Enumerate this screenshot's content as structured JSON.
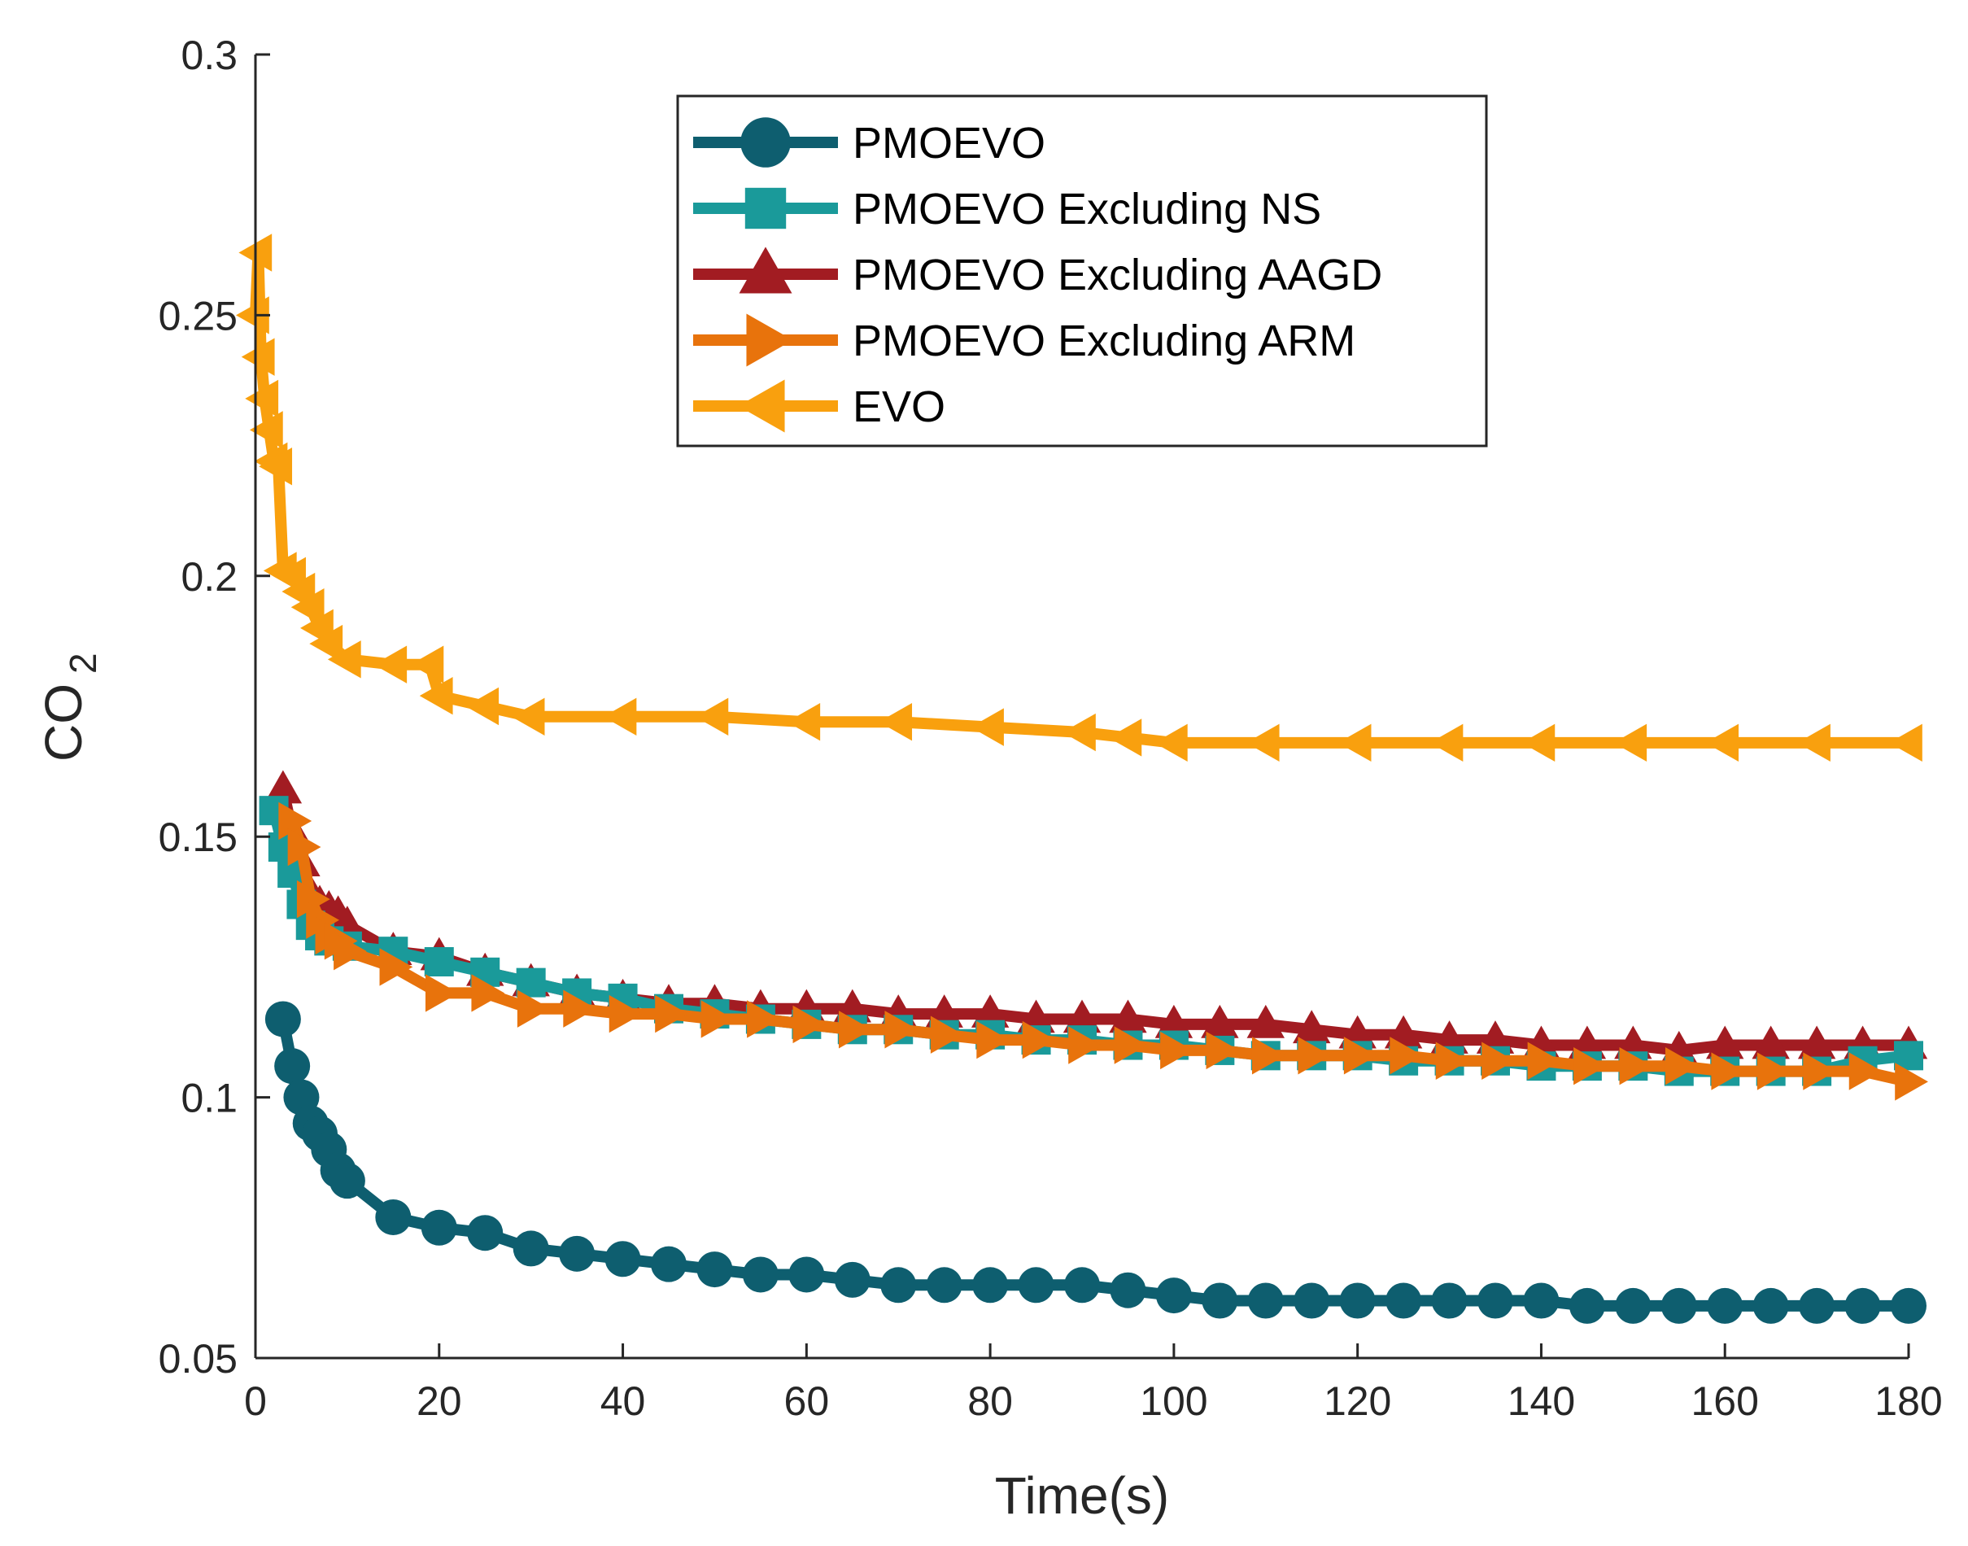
{
  "chart_data": {
    "type": "line",
    "title": "",
    "xlabel": "Time(s)",
    "ylabel": "CO",
    "ylabel_subscript": "2",
    "xlim": [
      0,
      180
    ],
    "ylim": [
      0.05,
      0.3
    ],
    "xticks": [
      0,
      20,
      40,
      60,
      80,
      100,
      120,
      140,
      160,
      180
    ],
    "xtick_labels": [
      "0",
      "20",
      "40",
      "60",
      "80",
      "100",
      "120",
      "140",
      "160",
      "180"
    ],
    "yticks": [
      0.05,
      0.1,
      0.15,
      0.2,
      0.25,
      0.3
    ],
    "ytick_labels": [
      "0.05",
      "0.1",
      "0.15",
      "0.2",
      "0.25",
      "0.3"
    ],
    "grid": false,
    "legend_position": "top-right",
    "series": [
      {
        "name": "PMOEVO",
        "color": "#0E5E6F",
        "marker": "circle",
        "x": [
          3,
          4,
          5,
          6,
          7,
          8,
          9,
          10,
          15,
          20,
          25,
          30,
          35,
          40,
          45,
          50,
          55,
          60,
          65,
          70,
          75,
          80,
          85,
          90,
          95,
          100,
          105,
          110,
          115,
          120,
          125,
          130,
          135,
          140,
          145,
          150,
          155,
          160,
          165,
          170,
          175,
          180
        ],
        "y": [
          0.115,
          0.106,
          0.1,
          0.095,
          0.093,
          0.09,
          0.086,
          0.084,
          0.077,
          0.075,
          0.074,
          0.071,
          0.07,
          0.069,
          0.068,
          0.067,
          0.066,
          0.066,
          0.065,
          0.064,
          0.064,
          0.064,
          0.064,
          0.064,
          0.063,
          0.062,
          0.061,
          0.061,
          0.061,
          0.061,
          0.061,
          0.061,
          0.061,
          0.061,
          0.06,
          0.06,
          0.06,
          0.06,
          0.06,
          0.06,
          0.06,
          0.06
        ]
      },
      {
        "name": "PMOEVO Excluding NS",
        "color": "#1A9A9A",
        "marker": "square",
        "x": [
          2,
          3,
          4,
          5,
          6,
          7,
          8,
          10,
          15,
          20,
          25,
          30,
          35,
          40,
          45,
          50,
          55,
          60,
          65,
          70,
          75,
          80,
          85,
          90,
          95,
          100,
          105,
          110,
          115,
          120,
          125,
          130,
          135,
          140,
          145,
          150,
          155,
          160,
          165,
          170,
          175,
          180
        ],
        "y": [
          0.155,
          0.148,
          0.143,
          0.137,
          0.133,
          0.131,
          0.13,
          0.129,
          0.128,
          0.126,
          0.124,
          0.122,
          0.12,
          0.119,
          0.117,
          0.116,
          0.115,
          0.114,
          0.113,
          0.113,
          0.112,
          0.112,
          0.111,
          0.111,
          0.11,
          0.11,
          0.109,
          0.108,
          0.108,
          0.108,
          0.107,
          0.107,
          0.107,
          0.106,
          0.106,
          0.106,
          0.105,
          0.105,
          0.105,
          0.105,
          0.107,
          0.108
        ]
      },
      {
        "name": "PMOEVO Excluding AAGD",
        "color": "#A21C22",
        "marker": "triangle-up",
        "x": [
          3,
          4,
          5,
          6,
          7,
          8,
          9,
          10,
          15,
          20,
          25,
          30,
          35,
          40,
          45,
          50,
          55,
          60,
          65,
          70,
          75,
          80,
          85,
          90,
          95,
          100,
          105,
          110,
          115,
          120,
          125,
          130,
          135,
          140,
          145,
          150,
          155,
          160,
          165,
          170,
          175,
          180
        ],
        "y": [
          0.159,
          0.151,
          0.145,
          0.139,
          0.137,
          0.136,
          0.135,
          0.133,
          0.128,
          0.127,
          0.124,
          0.122,
          0.12,
          0.119,
          0.118,
          0.118,
          0.117,
          0.117,
          0.117,
          0.116,
          0.116,
          0.116,
          0.115,
          0.115,
          0.115,
          0.114,
          0.114,
          0.114,
          0.113,
          0.112,
          0.112,
          0.111,
          0.111,
          0.11,
          0.11,
          0.11,
          0.109,
          0.11,
          0.11,
          0.11,
          0.11,
          0.11
        ]
      },
      {
        "name": "PMOEVO Excluding ARM",
        "color": "#E8730C",
        "marker": "triangle-right",
        "x": [
          4,
          5,
          6,
          7,
          8,
          9,
          10,
          15,
          20,
          25,
          30,
          35,
          40,
          45,
          50,
          55,
          60,
          65,
          70,
          75,
          80,
          85,
          90,
          95,
          100,
          105,
          110,
          115,
          120,
          125,
          130,
          135,
          140,
          145,
          150,
          155,
          160,
          165,
          170,
          175,
          180
        ],
        "y": [
          0.153,
          0.148,
          0.138,
          0.134,
          0.131,
          0.13,
          0.128,
          0.125,
          0.12,
          0.12,
          0.117,
          0.117,
          0.116,
          0.116,
          0.115,
          0.115,
          0.114,
          0.113,
          0.113,
          0.112,
          0.111,
          0.111,
          0.11,
          0.11,
          0.109,
          0.109,
          0.108,
          0.108,
          0.108,
          0.108,
          0.107,
          0.107,
          0.107,
          0.106,
          0.106,
          0.106,
          0.105,
          0.105,
          0.105,
          0.105,
          0.103
        ]
      },
      {
        "name": "EVO",
        "color": "#F9A00E",
        "marker": "triangle-left",
        "x": [
          0,
          0.3,
          0.6,
          1,
          1.5,
          2,
          2.5,
          3,
          4,
          5,
          6,
          7,
          8,
          10,
          15,
          19,
          20,
          25,
          30,
          40,
          50,
          60,
          70,
          80,
          90,
          95,
          100,
          110,
          120,
          130,
          140,
          150,
          160,
          170,
          180
        ],
        "y": [
          0.25,
          0.262,
          0.242,
          0.234,
          0.228,
          0.222,
          0.221,
          0.201,
          0.2,
          0.197,
          0.194,
          0.19,
          0.187,
          0.184,
          0.183,
          0.183,
          0.177,
          0.175,
          0.173,
          0.173,
          0.173,
          0.172,
          0.172,
          0.171,
          0.17,
          0.169,
          0.168,
          0.168,
          0.168,
          0.168,
          0.168,
          0.168,
          0.168,
          0.168,
          0.168
        ]
      }
    ]
  }
}
